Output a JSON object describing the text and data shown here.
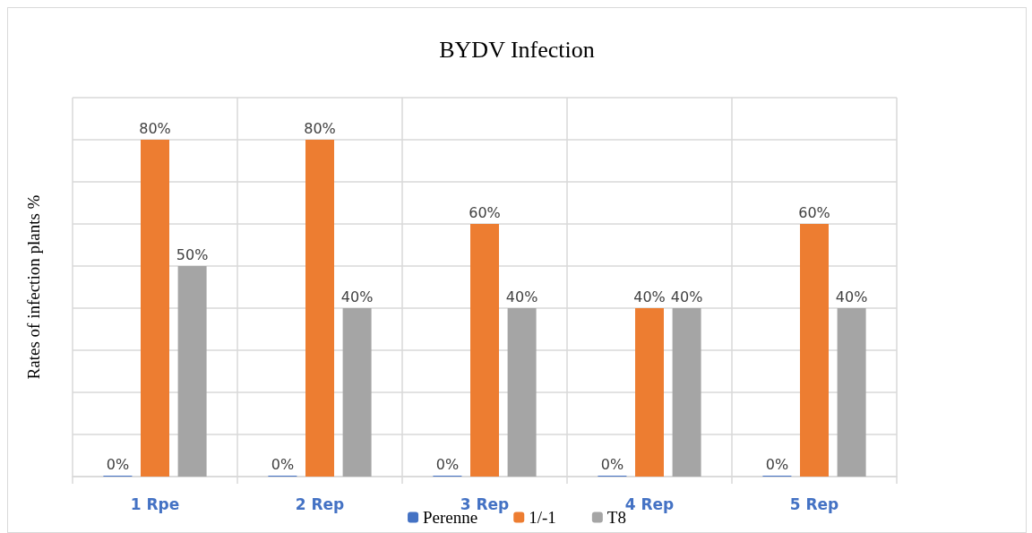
{
  "chart_data": {
    "type": "bar",
    "title": "BYDV Infection",
    "ylabel": "Rates of infection plants %",
    "categories": [
      "1 Rpe",
      "2 Rep",
      "3 Rep",
      "4 Rep",
      "5 Rep"
    ],
    "series": [
      {
        "name": "Perenne",
        "color": "#4472c4",
        "values": [
          0,
          0,
          0,
          0,
          0
        ],
        "value_labels": [
          "0%",
          "0%",
          "0%",
          "0%",
          "0%"
        ]
      },
      {
        "name": "1/-1",
        "color": "#ed7d31",
        "values": [
          80,
          80,
          60,
          40,
          60
        ],
        "value_labels": [
          "80%",
          "80%",
          "60%",
          "40%",
          "60%"
        ]
      },
      {
        "name": "T8",
        "color": "#a5a5a5",
        "values": [
          50,
          40,
          40,
          40,
          40
        ],
        "value_labels": [
          "50%",
          "40%",
          "40%",
          "40%",
          "40%"
        ]
      }
    ],
    "ylim": [
      0,
      90
    ],
    "yticks": [
      {
        "value": 0,
        "label": null
      },
      {
        "value": 10,
        "label": null
      },
      {
        "value": 20,
        "label": null
      },
      {
        "value": 30,
        "label": null
      },
      {
        "value": 40,
        "label": null
      },
      {
        "value": 50,
        "label": null
      },
      {
        "value": 60,
        "label": null
      },
      {
        "value": 70,
        "label": null
      },
      {
        "value": 80,
        "label": null
      },
      {
        "value": 90,
        "label": null
      }
    ],
    "tick_labels": "x",
    "grid": true,
    "legend": "bottom"
  }
}
